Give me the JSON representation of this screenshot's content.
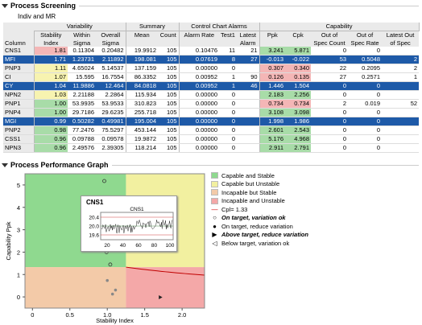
{
  "title": "Process Screening",
  "subtitle": "Indiv and MR",
  "table": {
    "group_headers": {
      "variability": "Variability",
      "summary": "Summary",
      "alarms": "Control Chart Alarms",
      "capability": "Capability"
    },
    "columns": [
      "Column",
      "Stability Index",
      "Within Sigma",
      "Overall Sigma",
      "Mean",
      "Count",
      "Alarm Rate",
      "Test1",
      "Latest Alarm",
      "Ppk",
      "Cpk",
      "Out of Spec Count",
      "Out of Spec Rate",
      "Latest Out of Spec"
    ],
    "col_h1": [
      "",
      "Stability",
      "Within",
      "Overall",
      "Mean",
      "Count",
      "Alarm Rate",
      "Test1",
      "Latest",
      "Ppk",
      "Cpk",
      "Out of",
      "Out of",
      "Latest Out"
    ],
    "col_h2": [
      "Column",
      "Index",
      "Sigma",
      "Sigma",
      "",
      "",
      "",
      "",
      "Alarm",
      "",
      "",
      "Spec Count",
      "Spec Rate",
      "of Spec"
    ],
    "rows": [
      {
        "c": [
          "CNS1",
          "1.81",
          "0.11304",
          "0.20482",
          "19.9912",
          "105",
          "0.10476",
          "11",
          "21",
          "3.241",
          "5.871",
          "0",
          "0",
          ""
        ],
        "s": false,
        "cls": [
          "",
          "r",
          "",
          "",
          "",
          "",
          "",
          "",
          "",
          "g",
          "g",
          "",
          "",
          ""
        ]
      },
      {
        "c": [
          "MFI",
          "1.71",
          "1.23731",
          "2.11892",
          "198.081",
          "105",
          "0.07619",
          "8",
          "27",
          "-0.013",
          "-0.022",
          "53",
          "0.5048",
          "2"
        ],
        "s": true,
        "cls": []
      },
      {
        "c": [
          "PNP3",
          "1.11",
          "4.65024",
          "5.14537",
          "137.159",
          "105",
          "0.00000",
          "0",
          "",
          "0.307",
          "0.340",
          "22",
          "0.2095",
          "2"
        ],
        "s": false,
        "cls": [
          "",
          "y",
          "",
          "",
          "",
          "",
          "",
          "",
          "",
          "r",
          "r",
          "",
          "",
          ""
        ]
      },
      {
        "c": [
          "CI",
          "1.07",
          "15.595",
          "16.7554",
          "86.3352",
          "105",
          "0.00952",
          "1",
          "90",
          "0.126",
          "0.135",
          "27",
          "0.2571",
          "1"
        ],
        "s": false,
        "cls": [
          "",
          "y",
          "",
          "",
          "",
          "",
          "",
          "",
          "",
          "r",
          "r",
          "",
          "",
          ""
        ]
      },
      {
        "c": [
          "CY",
          "1.04",
          "11.9886",
          "12.464",
          "84.0818",
          "105",
          "0.00952",
          "1",
          "46",
          "1.446",
          "1.504",
          "0",
          "0",
          ""
        ],
        "s": true,
        "cls": []
      },
      {
        "c": [
          "NPN2",
          "1.03",
          "2.21188",
          "2.2864",
          "115.934",
          "105",
          "0.00000",
          "0",
          "",
          "2.183",
          "2.256",
          "0",
          "0",
          ""
        ],
        "s": false,
        "cls": [
          "",
          "y",
          "",
          "",
          "",
          "",
          "",
          "",
          "",
          "g",
          "g",
          "",
          "",
          ""
        ]
      },
      {
        "c": [
          "PNP1",
          "1.00",
          "53.9935",
          "53.9533",
          "310.823",
          "105",
          "0.00000",
          "0",
          "",
          "0.734",
          "0.734",
          "2",
          "0.019",
          "52"
        ],
        "s": false,
        "cls": [
          "",
          "g",
          "",
          "",
          "",
          "",
          "",
          "",
          "",
          "r",
          "r",
          "",
          "",
          ""
        ]
      },
      {
        "c": [
          "PNP4",
          "1.00",
          "29.7186",
          "29.6235",
          "255.718",
          "105",
          "0.00000",
          "0",
          "",
          "3.108",
          "3.098",
          "0",
          "0",
          ""
        ],
        "s": false,
        "cls": [
          "",
          "g",
          "",
          "",
          "",
          "",
          "",
          "",
          "",
          "g",
          "g",
          "",
          "",
          ""
        ]
      },
      {
        "c": [
          "MGI",
          "0.99",
          "0.50282",
          "0.49981",
          "195.004",
          "105",
          "0.00000",
          "0",
          "",
          "1.998",
          "1.986",
          "0",
          "0",
          ""
        ],
        "s": true,
        "cls": []
      },
      {
        "c": [
          "PNP2",
          "0.98",
          "77.2476",
          "75.5297",
          "453.144",
          "105",
          "0.00000",
          "0",
          "",
          "2.601",
          "2.543",
          "0",
          "0",
          ""
        ],
        "s": false,
        "cls": [
          "",
          "g",
          "",
          "",
          "",
          "",
          "",
          "",
          "",
          "g",
          "g",
          "",
          "",
          ""
        ]
      },
      {
        "c": [
          "CSS1",
          "0.96",
          "0.09788",
          "0.09578",
          "19.9872",
          "105",
          "0.00000",
          "0",
          "",
          "5.176",
          "4.968",
          "0",
          "0",
          ""
        ],
        "s": false,
        "cls": [
          "",
          "g",
          "",
          "",
          "",
          "",
          "",
          "",
          "",
          "g",
          "g",
          "",
          "",
          ""
        ]
      },
      {
        "c": [
          "NPN3",
          "0.96",
          "2.49576",
          "2.39305",
          "118.214",
          "105",
          "0.00000",
          "0",
          "",
          "2.911",
          "2.791",
          "0",
          "0",
          ""
        ],
        "s": false,
        "cls": [
          "",
          "g",
          "",
          "",
          "",
          "",
          "",
          "",
          "",
          "g",
          "g",
          "",
          "",
          ""
        ]
      }
    ]
  },
  "graph": {
    "title": "Process Performance Graph",
    "xlabel": "Stability Index",
    "ylabel": "Capability Ppk",
    "xticks": [
      "0",
      "0.5",
      "1.0",
      "1.5",
      "2.0"
    ],
    "yticks": [
      "0",
      "1",
      "2",
      "3",
      "4",
      "5"
    ],
    "xlim": [
      -0.1,
      2.3
    ],
    "ylim": [
      -0.5,
      5.5
    ],
    "stability_cut": 1.25,
    "ppk_cut": 1.33,
    "legend": {
      "capable_stable": "Capable and Stable",
      "capable_unstable": "Capable but Unstable",
      "incapable_stable": "Incapable but Stable",
      "incapable_unstable": "Incapable and Unstable",
      "cpl": "Cpl= 1.33",
      "on_target_ok": "On target, variation ok",
      "on_target_reduce": "On target, reduce variation",
      "above_target": "Above target, reduce variation",
      "below_target": "Below target, variation ok"
    },
    "colors": {
      "green": "#8fd98f",
      "yellow": "#f2f0a0",
      "orange": "#f3caa8",
      "red": "#f4a8a8"
    },
    "points": [
      {
        "x": 1.81,
        "y": 3.241
      },
      {
        "x": 1.71,
        "y": -0.013
      },
      {
        "x": 1.11,
        "y": 0.307
      },
      {
        "x": 1.07,
        "y": 0.126
      },
      {
        "x": 1.04,
        "y": 1.446
      },
      {
        "x": 1.03,
        "y": 2.183
      },
      {
        "x": 1.0,
        "y": 0.734
      },
      {
        "x": 1.0,
        "y": 3.108
      },
      {
        "x": 0.99,
        "y": 1.998
      },
      {
        "x": 0.98,
        "y": 2.601
      },
      {
        "x": 0.96,
        "y": 5.176
      },
      {
        "x": 0.96,
        "y": 2.911
      }
    ],
    "inset": {
      "title": "CNS1",
      "chart_title": "CNS1",
      "yticks": [
        "20.4",
        "20.0",
        "19.6"
      ],
      "xticks": [
        "20",
        "40",
        "60",
        "80",
        "100"
      ]
    }
  }
}
